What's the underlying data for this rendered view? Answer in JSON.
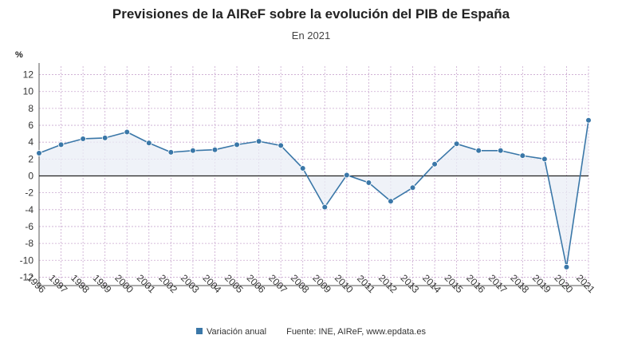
{
  "title": "Previsiones de la AIReF sobre la evolución del PIB de España",
  "subtitle": "En 2021",
  "y_unit": "%",
  "legend_label": "Variación anual",
  "source": "Fuente: INE, AIReF, www.epdata.es",
  "colors": {
    "line": "#3a77a8",
    "area": "#e9eef5",
    "grid": "#c9a8cf",
    "axis": "#222222"
  },
  "chart_data": {
    "type": "line",
    "title": "Previsiones de la AIReF sobre la evolución del PIB de España",
    "subtitle": "En 2021",
    "ylabel": "%",
    "ylim": [
      -13,
      13
    ],
    "yticks": [
      12,
      10,
      8,
      6,
      4,
      2,
      0,
      -2,
      -4,
      -6,
      -8,
      -10,
      -12
    ],
    "grid": true,
    "legend_position": "bottom",
    "categories": [
      "1996",
      "1997",
      "1998",
      "1999",
      "2000",
      "2001",
      "2002",
      "2003",
      "2004",
      "2005",
      "2006",
      "2007",
      "2008",
      "2009",
      "2010",
      "2011",
      "2012",
      "2013",
      "2014",
      "2015",
      "2016",
      "2017",
      "2018",
      "2019",
      "2020",
      "2021"
    ],
    "series": [
      {
        "name": "Variación anual",
        "values": [
          2.7,
          3.7,
          4.4,
          4.5,
          5.2,
          3.9,
          2.8,
          3.0,
          3.1,
          3.7,
          4.1,
          3.6,
          0.9,
          -3.7,
          0.1,
          -0.8,
          -3.0,
          -1.4,
          1.4,
          3.8,
          3.0,
          3.0,
          2.4,
          2.0,
          -10.8,
          6.6
        ]
      }
    ]
  }
}
